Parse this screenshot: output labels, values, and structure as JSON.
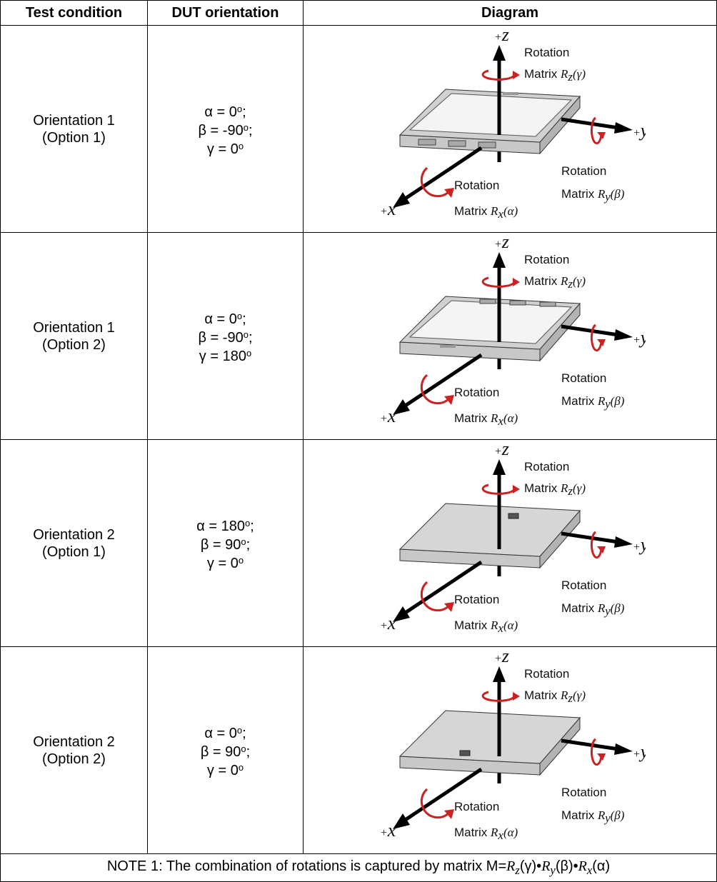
{
  "header": {
    "col1": "Test condition",
    "col2": "DUT orientation",
    "col3": "Diagram"
  },
  "diagram_labels": {
    "rotation": "Rotation",
    "matrix": "Matrix",
    "rz": "R",
    "rz_sub": "z",
    "rz_arg": "(γ)",
    "ry": "R",
    "ry_sub": "y",
    "ry_arg": "(β)",
    "rx": "R",
    "rx_sub": "x",
    "rx_arg": "(α)",
    "axis_z": "z",
    "axis_y": "y",
    "axis_x": "x",
    "plus": "+"
  },
  "rows": [
    {
      "condition_line1": "Orientation 1",
      "condition_line2": "(Option 1)",
      "alpha": "α = 0",
      "alpha_end": ";",
      "beta": "β = -90",
      "beta_end": ";",
      "gamma": "γ = 0",
      "gamma_end": "",
      "deg": "o",
      "device": "screen-up-buttons-front"
    },
    {
      "condition_line1": "Orientation 1",
      "condition_line2": "(Option 2)",
      "alpha": "α = 0",
      "alpha_end": ";",
      "beta": "β = -90",
      "beta_end": ";",
      "gamma": "γ = 180",
      "gamma_end": "",
      "deg": "o",
      "device": "screen-up-buttons-back"
    },
    {
      "condition_line1": "Orientation 2",
      "condition_line2": "(Option 1)",
      "alpha": "α = 180",
      "alpha_end": ";",
      "beta": "β = 90",
      "beta_end": ";",
      "gamma": "γ = 0",
      "gamma_end": "",
      "deg": "o",
      "device": "screen-down-camera-back"
    },
    {
      "condition_line1": "Orientation 2",
      "condition_line2": "(Option 2)",
      "alpha": "α = 0",
      "alpha_end": ";",
      "beta": "β = 90",
      "beta_end": ";",
      "gamma": "γ = 0",
      "gamma_end": "",
      "deg": "o",
      "device": "screen-down-camera-front"
    }
  ],
  "note": {
    "prefix": "NOTE 1: The combination of rotations is captured by matrix M=",
    "r": "R",
    "z": "z",
    "g": "(γ)•",
    "y": "y",
    "b": "(β)•",
    "x": "x",
    "a": "(α)"
  }
}
